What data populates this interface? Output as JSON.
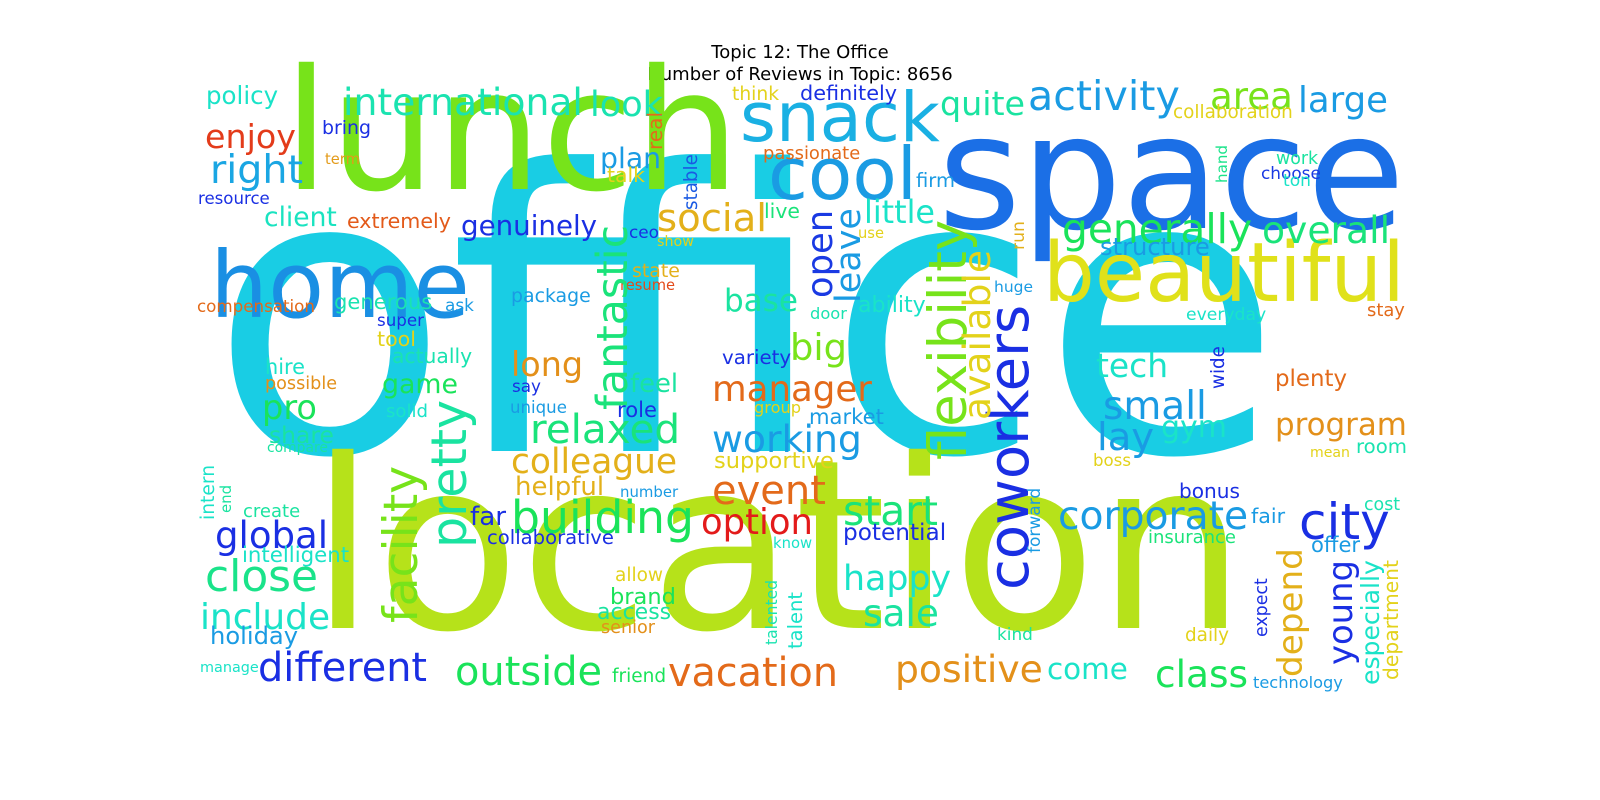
{
  "title_line1": "Topic 12: The Office",
  "title_line2": "Number of Reviews in Topic: 8656",
  "words": [
    {
      "text": "office",
      "color": "#19cde4"
    },
    {
      "text": "space",
      "color": "#1b6fe6"
    },
    {
      "text": "lunch",
      "color": "#77e31a"
    },
    {
      "text": "location",
      "color": "#b6e21a"
    },
    {
      "text": "home",
      "color": "#1a8fe3"
    },
    {
      "text": "snack",
      "color": "#1ab0e3"
    },
    {
      "text": "cool",
      "color": "#1a9be3"
    },
    {
      "text": "beautiful",
      "color": "#e0e11a"
    },
    {
      "text": "coworkers",
      "color": "#1a2fe3"
    },
    {
      "text": "international",
      "color": "#1ae3b0"
    },
    {
      "text": "look",
      "color": "#1ae3b0"
    },
    {
      "text": "area",
      "color": "#77e31a"
    },
    {
      "text": "activity",
      "color": "#1a9be3"
    },
    {
      "text": "large",
      "color": "#1a9be3"
    },
    {
      "text": "quite",
      "color": "#1ae3a0"
    },
    {
      "text": "enjoy",
      "color": "#e33b1a"
    },
    {
      "text": "right",
      "color": "#1aa6e3"
    },
    {
      "text": "policy",
      "color": "#1ae3c8"
    },
    {
      "text": "bring",
      "color": "#1a2fe3"
    },
    {
      "text": "term",
      "color": "#e39b1a"
    },
    {
      "text": "resource",
      "color": "#1a2fe3"
    },
    {
      "text": "client",
      "color": "#1ae3c0"
    },
    {
      "text": "extremely",
      "color": "#e35a1a"
    },
    {
      "text": "genuinely",
      "color": "#1a2fe3"
    },
    {
      "text": "social",
      "color": "#e3b01a"
    },
    {
      "text": "plan",
      "color": "#1a9be3"
    },
    {
      "text": "talk",
      "color": "#e3d21a"
    },
    {
      "text": "think",
      "color": "#e3d21a"
    },
    {
      "text": "definitely",
      "color": "#1a2fe3"
    },
    {
      "text": "real",
      "color": "#e36a1a"
    },
    {
      "text": "stable",
      "color": "#1a5ae3"
    },
    {
      "text": "passionate",
      "color": "#e36a1a"
    },
    {
      "text": "ceo",
      "color": "#1a2fe3"
    },
    {
      "text": "show",
      "color": "#e3d21a"
    },
    {
      "text": "live",
      "color": "#1ae37a"
    },
    {
      "text": "use",
      "color": "#e3d21a"
    },
    {
      "text": "firm",
      "color": "#1a9be3"
    },
    {
      "text": "little",
      "color": "#1ae3c8"
    },
    {
      "text": "leave",
      "color": "#1a9be3"
    },
    {
      "text": "open",
      "color": "#1a3ae3"
    },
    {
      "text": "generally",
      "color": "#1ae35a"
    },
    {
      "text": "overall",
      "color": "#1ae37a"
    },
    {
      "text": "structure",
      "color": "#1a9be3"
    },
    {
      "text": "collaboration",
      "color": "#e3d21a"
    },
    {
      "text": "work",
      "color": "#1ae3a0"
    },
    {
      "text": "choose",
      "color": "#1a3ae3"
    },
    {
      "text": "ton",
      "color": "#1ae3c8"
    },
    {
      "text": "hand",
      "color": "#1ae38a"
    },
    {
      "text": "run",
      "color": "#e3b01a"
    },
    {
      "text": "huge",
      "color": "#1a9be3"
    },
    {
      "text": "compensation",
      "color": "#e36a1a"
    },
    {
      "text": "generous",
      "color": "#1ae3b0"
    },
    {
      "text": "ask",
      "color": "#1a9be3"
    },
    {
      "text": "super",
      "color": "#1a2fe3"
    },
    {
      "text": "package",
      "color": "#1a9be3"
    },
    {
      "text": "state",
      "color": "#e3b01a"
    },
    {
      "text": "resume",
      "color": "#e34a1a"
    },
    {
      "text": "fantastic",
      "color": "#1ae37a"
    },
    {
      "text": "base",
      "color": "#1ae3a0"
    },
    {
      "text": "door",
      "color": "#1ae3b0"
    },
    {
      "text": "ability",
      "color": "#1ae3c8"
    },
    {
      "text": "everyday",
      "color": "#1ae3c8"
    },
    {
      "text": "stay",
      "color": "#e36a1a"
    },
    {
      "text": "flexibility",
      "color": "#77e31a"
    },
    {
      "text": "available",
      "color": "#e3d21a"
    },
    {
      "text": "tool",
      "color": "#e3d21a"
    },
    {
      "text": "actually",
      "color": "#1ae3b0"
    },
    {
      "text": "hire",
      "color": "#1ae3c8"
    },
    {
      "text": "possible",
      "color": "#e3901a"
    },
    {
      "text": "game",
      "color": "#1ae35a"
    },
    {
      "text": "long",
      "color": "#e3901a"
    },
    {
      "text": "big",
      "color": "#77e31a"
    },
    {
      "text": "manager",
      "color": "#e36a1a"
    },
    {
      "text": "variety",
      "color": "#1a2fe3"
    },
    {
      "text": "say",
      "color": "#1a2fe3"
    },
    {
      "text": "unique",
      "color": "#1a9be3"
    },
    {
      "text": "feel",
      "color": "#1ae3a0"
    },
    {
      "text": "role",
      "color": "#1a2fe3"
    },
    {
      "text": "group",
      "color": "#e3d21a"
    },
    {
      "text": "market",
      "color": "#1a9be3"
    },
    {
      "text": "tech",
      "color": "#1ae3c8"
    },
    {
      "text": "small",
      "color": "#1a9be3"
    },
    {
      "text": "plenty",
      "color": "#e36a1a"
    },
    {
      "text": "wide",
      "color": "#1a2fe3"
    },
    {
      "text": "program",
      "color": "#e3901a"
    },
    {
      "text": "room",
      "color": "#1ae3b0"
    },
    {
      "text": "gym",
      "color": "#1ae3c8"
    },
    {
      "text": "lay",
      "color": "#1a9be3"
    },
    {
      "text": "pro",
      "color": "#1ae35a"
    },
    {
      "text": "solid",
      "color": "#1ae3c8"
    },
    {
      "text": "share",
      "color": "#1ae3a0"
    },
    {
      "text": "compare",
      "color": "#1ae3a0"
    },
    {
      "text": "pretty",
      "color": "#1ae3a0"
    },
    {
      "text": "relaxed",
      "color": "#1ae37a"
    },
    {
      "text": "working",
      "color": "#1a9be3"
    },
    {
      "text": "supportive",
      "color": "#e3d21a"
    },
    {
      "text": "colleague",
      "color": "#e3b01a"
    },
    {
      "text": "helpful",
      "color": "#e3b01a"
    },
    {
      "text": "event",
      "color": "#e36a1a"
    },
    {
      "text": "mean",
      "color": "#e3d21a"
    },
    {
      "text": "boss",
      "color": "#e3d21a"
    },
    {
      "text": "bonus",
      "color": "#1a2fe3"
    },
    {
      "text": "cost",
      "color": "#1ae3b0"
    },
    {
      "text": "facility",
      "color": "#77e31a"
    },
    {
      "text": "intern",
      "color": "#1ae3c8"
    },
    {
      "text": "end",
      "color": "#1ae3a0"
    },
    {
      "text": "create",
      "color": "#1ae3a0"
    },
    {
      "text": "global",
      "color": "#1a2fe3"
    },
    {
      "text": "intelligent",
      "color": "#1ae3c8"
    },
    {
      "text": "number",
      "color": "#1a9be3"
    },
    {
      "text": "far",
      "color": "#1a2fe3"
    },
    {
      "text": "building",
      "color": "#1ae35a"
    },
    {
      "text": "collaborative",
      "color": "#1a2fe3"
    },
    {
      "text": "option",
      "color": "#e31a1a"
    },
    {
      "text": "start",
      "color": "#1ae37a"
    },
    {
      "text": "potential",
      "color": "#1a2fe3"
    },
    {
      "text": "corporate",
      "color": "#1a9be3"
    },
    {
      "text": "insurance",
      "color": "#1ae37a"
    },
    {
      "text": "city",
      "color": "#1a2fe3"
    },
    {
      "text": "fair",
      "color": "#1a9be3"
    },
    {
      "text": "offer",
      "color": "#1a9be3"
    },
    {
      "text": "forward",
      "color": "#1a9be3"
    },
    {
      "text": "close",
      "color": "#1ae38a"
    },
    {
      "text": "know",
      "color": "#1ae3c8"
    },
    {
      "text": "happy",
      "color": "#1ae3c8"
    },
    {
      "text": "allow",
      "color": "#e3d21a"
    },
    {
      "text": "brand",
      "color": "#1ae35a"
    },
    {
      "text": "access",
      "color": "#1ae3a0"
    },
    {
      "text": "senior",
      "color": "#e3901a"
    },
    {
      "text": "talented",
      "color": "#1ae3b0"
    },
    {
      "text": "talent",
      "color": "#1ae3c8"
    },
    {
      "text": "sale",
      "color": "#1ae3a0"
    },
    {
      "text": "depend",
      "color": "#e3b01a"
    },
    {
      "text": "young",
      "color": "#1a2fe3"
    },
    {
      "text": "especially",
      "color": "#1ae3c8"
    },
    {
      "text": "department",
      "color": "#e3d21a"
    },
    {
      "text": "expect",
      "color": "#1a2fe3"
    },
    {
      "text": "include",
      "color": "#1ae3c8"
    },
    {
      "text": "holiday",
      "color": "#1a9be3"
    },
    {
      "text": "manage",
      "color": "#1ae3c8"
    },
    {
      "text": "different",
      "color": "#1a2fe3"
    },
    {
      "text": "outside",
      "color": "#1ae35a"
    },
    {
      "text": "friend",
      "color": "#1ae35a"
    },
    {
      "text": "vacation",
      "color": "#e36a1a"
    },
    {
      "text": "positive",
      "color": "#e3901a"
    },
    {
      "text": "come",
      "color": "#1ae3c8"
    },
    {
      "text": "kind",
      "color": "#1ae3a0"
    },
    {
      "text": "daily",
      "color": "#e3d21a"
    },
    {
      "text": "class",
      "color": "#1ae35a"
    },
    {
      "text": "technology",
      "color": "#1a9be3"
    }
  ]
}
